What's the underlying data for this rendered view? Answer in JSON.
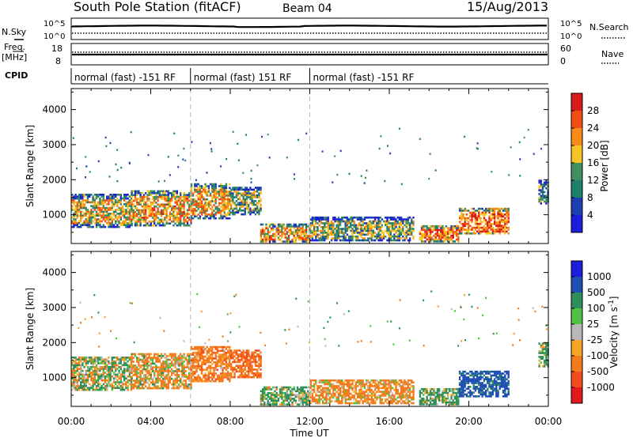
{
  "header": {
    "station": "South Pole Station (fitACF)",
    "beam": "Beam 04",
    "date": "15/Aug/2013"
  },
  "panels": {
    "nsky_label": "N.Sky",
    "nsky_ticks": [
      "10^5",
      "10^0"
    ],
    "nsearch_label": "N.Search",
    "nsearch_ticks": [
      "10^5",
      "10^0"
    ],
    "freq_label_top": "Freq.",
    "freq_label_unit": "[MHz]",
    "freq_ticks": [
      "18",
      "8"
    ],
    "nave_label": "Nave",
    "nave_ticks": [
      "60",
      "0"
    ],
    "cpid_label": "CPID",
    "cpid_segments": [
      {
        "label": "normal (fast) -151 RF",
        "start_hour": 0,
        "end_hour": 6
      },
      {
        "label": "normal (fast) 151 RF",
        "start_hour": 6,
        "end_hour": 12
      },
      {
        "label": "normal (fast) -151 RF",
        "start_hour": 12,
        "end_hour": 24
      }
    ]
  },
  "chart_data": [
    {
      "type": "heatmap",
      "panel": "power",
      "xlabel": "",
      "ylabel": "Slant Range [km]",
      "xlim": [
        0,
        24
      ],
      "ylim": [
        180,
        4600
      ],
      "yticks": [
        1000,
        2000,
        3000,
        4000
      ],
      "colorbar_label": "Power [dB]",
      "colorbar_ticks": [
        "28",
        "24",
        "20",
        "16",
        "12",
        "8",
        "4"
      ],
      "colorbar_colors": [
        "#d91a1a",
        "#f24d12",
        "#f98c19",
        "#f7c424",
        "#3f8f5f",
        "#1f7f6f",
        "#1e3fb2",
        "#1c1cd9"
      ],
      "data_bands": [
        {
          "start_hour": 0.0,
          "end_hour": 3.0,
          "range_low": 650,
          "range_high": 1600,
          "power_db": 17
        },
        {
          "start_hour": 3.0,
          "end_hour": 6.0,
          "range_low": 700,
          "range_high": 1700,
          "power_db": 19
        },
        {
          "start_hour": 6.0,
          "end_hour": 8.0,
          "range_low": 900,
          "range_high": 1900,
          "power_db": 18
        },
        {
          "start_hour": 8.0,
          "end_hour": 9.5,
          "range_low": 1000,
          "range_high": 1800,
          "power_db": 14
        },
        {
          "start_hour": 9.5,
          "end_hour": 12.0,
          "range_low": 250,
          "range_high": 750,
          "power_db": 20
        },
        {
          "start_hour": 12.0,
          "end_hour": 17.2,
          "range_low": 250,
          "range_high": 950,
          "power_db": 14
        },
        {
          "start_hour": 17.5,
          "end_hour": 19.5,
          "range_low": 250,
          "range_high": 700,
          "power_db": 22
        },
        {
          "start_hour": 19.5,
          "end_hour": 22.0,
          "range_low": 450,
          "range_high": 1200,
          "power_db": 23
        },
        {
          "start_hour": 23.5,
          "end_hour": 24.0,
          "range_low": 1300,
          "range_high": 2000,
          "power_db": 9
        }
      ]
    },
    {
      "type": "heatmap",
      "panel": "velocity",
      "xlabel": "Time UT",
      "ylabel": "Slant Range [km]",
      "xlim": [
        0,
        24
      ],
      "ylim": [
        180,
        4600
      ],
      "yticks": [
        1000,
        2000,
        3000,
        4000
      ],
      "xticks": [
        "00:00",
        "04:00",
        "08:00",
        "12:00",
        "16:00",
        "20:00",
        "00:00"
      ],
      "colorbar_label": "Velocity [m s^-1]",
      "colorbar_ticks": [
        "1000",
        "500",
        "100",
        "25",
        "-25",
        "-100",
        "-500",
        "-1000"
      ],
      "colorbar_colors": [
        "#1c1cd9",
        "#1f4fb5",
        "#2f8f5a",
        "#52c044",
        "#b8b8b8",
        "#f7a528",
        "#f47a1c",
        "#f44c1f",
        "#e01a1a"
      ],
      "data_bands": [
        {
          "start_hour": 0.0,
          "end_hour": 3.0,
          "range_low": 650,
          "range_high": 1600,
          "velocity": 40
        },
        {
          "start_hour": 3.0,
          "end_hour": 6.0,
          "range_low": 700,
          "range_high": 1700,
          "velocity": -150
        },
        {
          "start_hour": 6.0,
          "end_hour": 8.0,
          "range_low": 900,
          "range_high": 1900,
          "velocity": -300
        },
        {
          "start_hour": 8.0,
          "end_hour": 9.5,
          "range_low": 1000,
          "range_high": 1800,
          "velocity": -400
        },
        {
          "start_hour": 9.5,
          "end_hour": 12.0,
          "range_low": 250,
          "range_high": 750,
          "velocity": 150
        },
        {
          "start_hour": 12.0,
          "end_hour": 17.2,
          "range_low": 250,
          "range_high": 950,
          "velocity": -200
        },
        {
          "start_hour": 17.5,
          "end_hour": 19.5,
          "range_low": 250,
          "range_high": 700,
          "velocity": 200
        },
        {
          "start_hour": 19.5,
          "end_hour": 22.0,
          "range_low": 450,
          "range_high": 1200,
          "velocity": 700
        },
        {
          "start_hour": 23.5,
          "end_hour": 24.0,
          "range_low": 1300,
          "range_high": 2000,
          "velocity": 150
        }
      ]
    }
  ]
}
